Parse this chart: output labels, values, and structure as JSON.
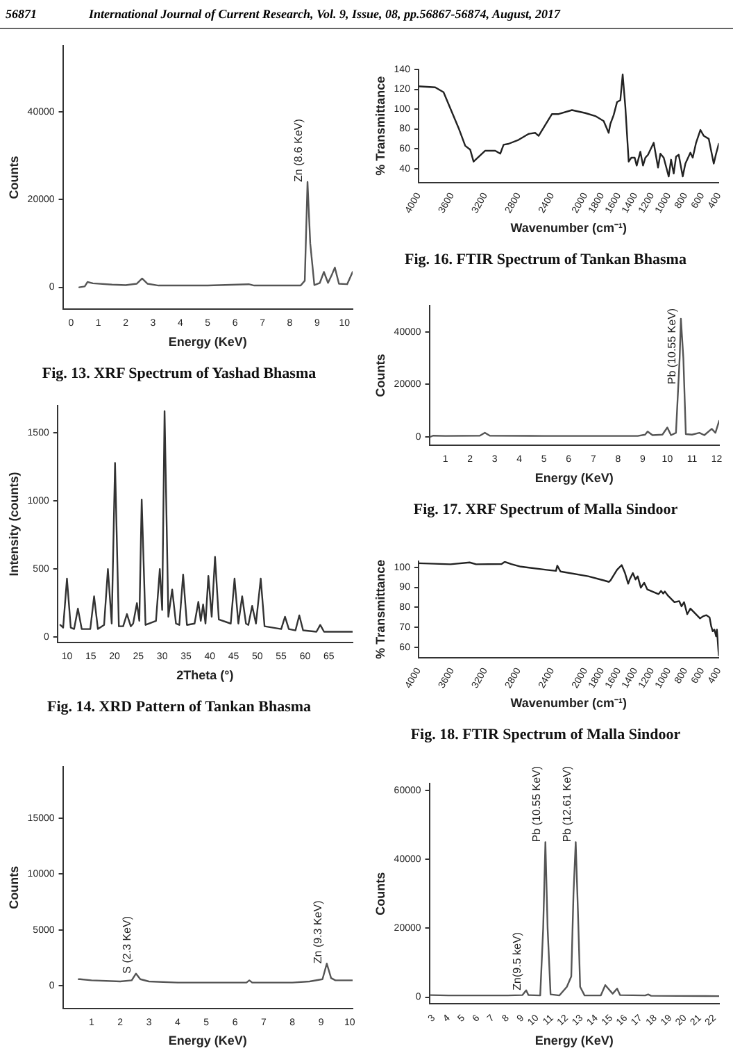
{
  "chart_data": [
    {
      "type": "line",
      "title": "Fig. 13. XRF Spectrum of Yashad Bhasma",
      "xlabel": "Energy (KeV)",
      "ylabel": "Counts",
      "color": "#555555",
      "x": [
        0.3,
        0.5,
        0.6,
        0.8,
        1.5,
        2.0,
        2.4,
        2.6,
        2.8,
        3.2,
        5,
        6.5,
        6.7,
        8.4,
        8.55,
        8.65,
        8.75,
        8.9,
        9.1,
        9.25,
        9.4,
        9.55,
        9.65,
        9.8,
        10.1,
        10.3
      ],
      "values": [
        0,
        200,
        1200,
        900,
        600,
        500,
        800,
        2000,
        800,
        400,
        400,
        700,
        400,
        400,
        1500,
        24000,
        10000,
        500,
        1000,
        3500,
        1000,
        3000,
        4500,
        800,
        700,
        3500
      ],
      "xlim": [
        -0.3,
        10.3
      ],
      "xticks": [
        0,
        1,
        2,
        3,
        4,
        5,
        6,
        7,
        8,
        9,
        10
      ],
      "ylim": [
        -5000,
        55000
      ],
      "yticks": [
        0,
        20000,
        40000
      ],
      "annotations": [
        "56871",
        "International Journal of Current Research, Vol. 9, Issue, 08, pp.56867-56874, August, 2017",
        {
          "text": "Zn (8.6 KeV)",
          "x": 8.65,
          "y": 24000
        }
      ]
    },
    {
      "type": "line",
      "title": "Fig. 14. XRD Pattern of Tankan Bhasma",
      "xlabel": "2Theta (°)",
      "ylabel": "Intensity (counts)",
      "color": "#333333",
      "x": [
        8.6,
        9.2,
        10,
        10.8,
        11.5,
        12.3,
        13.1,
        14.9,
        15.7,
        16.5,
        17.8,
        18.6,
        19.4,
        20.1,
        20.9,
        21.8,
        22.6,
        23.4,
        23.9,
        24.7,
        25.2,
        25.7,
        26.5,
        28.7,
        29.5,
        30,
        30.5,
        31.3,
        32.1,
        32.9,
        33.6,
        34.4,
        35.2,
        36.8,
        37.6,
        38.1,
        38.6,
        39.1,
        39.7,
        40.4,
        41.1,
        41.9,
        44.4,
        45.2,
        46,
        46.8,
        47.6,
        48.1,
        48.9,
        49.7,
        50.7,
        51.5,
        55,
        55.8,
        56.6,
        58,
        58.8,
        59.6,
        62.4,
        63.2,
        64,
        70
      ],
      "values": [
        90,
        70,
        430,
        70,
        60,
        210,
        60,
        60,
        300,
        60,
        90,
        500,
        100,
        1280,
        80,
        80,
        170,
        80,
        100,
        250,
        120,
        1010,
        90,
        120,
        500,
        200,
        1660,
        150,
        350,
        100,
        90,
        460,
        90,
        100,
        260,
        120,
        240,
        100,
        450,
        150,
        590,
        130,
        100,
        430,
        100,
        300,
        100,
        90,
        230,
        100,
        430,
        80,
        60,
        150,
        60,
        50,
        160,
        50,
        40,
        90,
        40,
        40
      ],
      "xlim": [
        8,
        70
      ],
      "xticks": [
        10,
        15,
        20,
        25,
        30,
        35,
        40,
        45,
        50,
        55,
        60,
        65
      ],
      "ylim": [
        -40,
        1700
      ],
      "yticks": [
        0,
        500,
        1000,
        1500
      ]
    },
    {
      "type": "line",
      "xlabel": "Energy (KeV)",
      "ylabel": "Counts",
      "color": "#555555",
      "x": [
        0.55,
        0.6,
        1,
        2,
        2.4,
        2.55,
        2.7,
        3,
        4,
        5,
        6.4,
        6.5,
        6.6,
        8,
        8.6,
        9.05,
        9.2,
        9.35,
        9.5,
        10.1
      ],
      "values": [
        600,
        600,
        500,
        400,
        500,
        1100,
        600,
        400,
        300,
        300,
        300,
        500,
        300,
        300,
        400,
        600,
        2000,
        700,
        500,
        500
      ],
      "xlim": [
        0,
        10.1
      ],
      "xticks": [
        1,
        2,
        3,
        4,
        5,
        6,
        7,
        8,
        9,
        10
      ],
      "ylim": [
        -2000,
        19600
      ],
      "yticks": [
        0,
        5000,
        10000,
        15000
      ],
      "annotations": [
        {
          "text": "S (2.3 KeV)",
          "x": 2.55,
          "y": 1100
        },
        {
          "text": "Zn (9.3 KeV)",
          "x": 9.2,
          "y": 2000
        }
      ]
    },
    {
      "type": "line",
      "title": "Fig. 16. FTIR Spectrum of Tankan Bhasma",
      "xlabel": "Wavenumber (cm⁻¹)",
      "ylabel": "% Transmittance",
      "color": "#222222",
      "x": [
        4000,
        3800,
        3700,
        3520,
        3440,
        3380,
        3340,
        3200,
        3080,
        3020,
        2980,
        2920,
        2800,
        2680,
        2600,
        2560,
        2400,
        2320,
        2160,
        2000,
        1880,
        1780,
        1720,
        1700,
        1660,
        1620,
        1580,
        1552,
        1520,
        1480,
        1448,
        1408,
        1384,
        1340,
        1308,
        1280,
        1248,
        1180,
        1128,
        1100,
        1060,
        1000,
        972,
        940,
        912,
        880,
        832,
        800,
        740,
        712,
        672,
        620,
        580,
        520,
        460,
        432,
        400
      ],
      "values": [
        123,
        122,
        117,
        81,
        63,
        59,
        47,
        58,
        58,
        55,
        64,
        65,
        69,
        75,
        76,
        73,
        95,
        95,
        99,
        96,
        93,
        88,
        76,
        85,
        94,
        107,
        109,
        135,
        102,
        47,
        51,
        51,
        43,
        57,
        43,
        51,
        54,
        66,
        41,
        55,
        51,
        32,
        49,
        35,
        52,
        54,
        32,
        45,
        56,
        51,
        66,
        79,
        73,
        70,
        45,
        55,
        65
      ],
      "xlim": [
        4000,
        400
      ],
      "xticks": [
        4000,
        3600,
        3200,
        2800,
        2400,
        2000,
        1800,
        1600,
        1400,
        1200,
        1000,
        800,
        600,
        400
      ],
      "ylim": [
        26,
        140
      ],
      "yticks": [
        40,
        60,
        80,
        100,
        120,
        140
      ]
    },
    {
      "type": "line",
      "title": "Fig. 17. XRF Spectrum of Malla Sindoor",
      "xlabel": "Energy (KeV)",
      "ylabel": "Counts",
      "color": "#555555",
      "x": [
        0.4,
        0.5,
        1,
        2.4,
        2.6,
        2.8,
        5,
        8.8,
        9.1,
        9.2,
        9.4,
        9.8,
        10,
        10.15,
        10.35,
        10.5,
        10.55,
        10.65,
        10.75,
        11,
        11.3,
        11.5,
        11.8,
        11.95,
        12.1
      ],
      "values": [
        0,
        400,
        300,
        400,
        1500,
        400,
        300,
        300,
        800,
        2000,
        600,
        800,
        3500,
        600,
        1500,
        30000,
        45000,
        30000,
        1000,
        800,
        1500,
        600,
        3000,
        1500,
        6000
      ],
      "xlim": [
        0.35,
        12.1
      ],
      "xticks": [
        1,
        2,
        3,
        4,
        5,
        6,
        7,
        8,
        9,
        10,
        11,
        12
      ],
      "ylim": [
        -3300,
        50000
      ],
      "yticks": [
        0,
        20000,
        40000
      ],
      "annotations": [
        {
          "text": "Pb (10.55 KeV)",
          "x": 10.55,
          "y": 20000
        }
      ]
    },
    {
      "type": "line",
      "title": "Fig. 18. FTIR Spectrum of Malla Sindoor",
      "xlabel": "Wavenumber (cm⁻¹)",
      "ylabel": "% Transmittance",
      "color": "#222222",
      "x": [
        4000,
        3617,
        3387,
        3310,
        3004,
        2966,
        2888,
        2774,
        2467,
        2352,
        2336,
        2298,
        1966,
        1774,
        1716,
        1698,
        1620,
        1564,
        1524,
        1486,
        1468,
        1430,
        1398,
        1372,
        1334,
        1294,
        1256,
        1122,
        1092,
        1066,
        1046,
        1008,
        932,
        874,
        846,
        816,
        778,
        740,
        624,
        586,
        548,
        510,
        490,
        472,
        452,
        432,
        422,
        400
      ],
      "values": [
        102,
        101.5,
        102.4,
        101.5,
        101.6,
        102.7,
        101.6,
        100.3,
        98.7,
        98.2,
        100.8,
        97.9,
        95.5,
        93.4,
        92.7,
        93.4,
        98.7,
        101.1,
        97.1,
        91.8,
        93.9,
        97.1,
        93.9,
        95.5,
        89.8,
        92.3,
        88.9,
        86.6,
        88.2,
        86.9,
        87.9,
        85.8,
        82.6,
        83.1,
        80.5,
        82.6,
        76.6,
        79.4,
        74.5,
        75.6,
        76.1,
        75,
        70.5,
        68.1,
        68.9,
        65.6,
        68.9,
        56
      ],
      "xlim": [
        4000,
        400
      ],
      "xticks": [
        4000,
        3600,
        3200,
        2800,
        2400,
        2000,
        1800,
        1600,
        1400,
        1200,
        1000,
        800,
        600,
        400
      ],
      "ylim": [
        55,
        103
      ],
      "yticks": [
        60,
        70,
        80,
        90,
        100
      ]
    },
    {
      "type": "line",
      "xlabel": "Energy (KeV)",
      "ylabel": "Counts",
      "color": "#555555",
      "x": [
        2.8,
        4,
        8,
        9,
        9.25,
        9.4,
        10.2,
        10.4,
        10.55,
        10.7,
        10.9,
        11.5,
        12,
        12.3,
        12.45,
        12.6,
        12.75,
        12.9,
        13.2,
        14.3,
        14.6,
        14.8,
        15.1,
        15.4,
        15.6,
        17.3,
        17.5,
        17.7,
        22.3
      ],
      "values": [
        600,
        500,
        500,
        600,
        2000,
        600,
        500,
        20000,
        45000,
        20000,
        800,
        500,
        3000,
        6000,
        30000,
        45000,
        25000,
        3000,
        500,
        500,
        3500,
        2500,
        1000,
        2500,
        600,
        500,
        800,
        400,
        300
      ],
      "xlim": [
        2.7,
        22.3
      ],
      "xticks": [
        3,
        4,
        5,
        6,
        7,
        8,
        9,
        10,
        11,
        12,
        13,
        14,
        15,
        16,
        17,
        18,
        19,
        20,
        21,
        22
      ],
      "ylim": [
        -2000,
        62000
      ],
      "yticks": [
        0,
        20000,
        40000,
        60000
      ],
      "annotations": [
        {
          "text": "Zn(9.5 keV)",
          "x": 9.25,
          "y": 2000
        },
        {
          "text": "Pb (10.55 KeV)",
          "x": 10.55,
          "y": 45000
        },
        {
          "text": "Pb (12.61 KeV)",
          "x": 12.6,
          "y": 45000
        }
      ]
    }
  ]
}
